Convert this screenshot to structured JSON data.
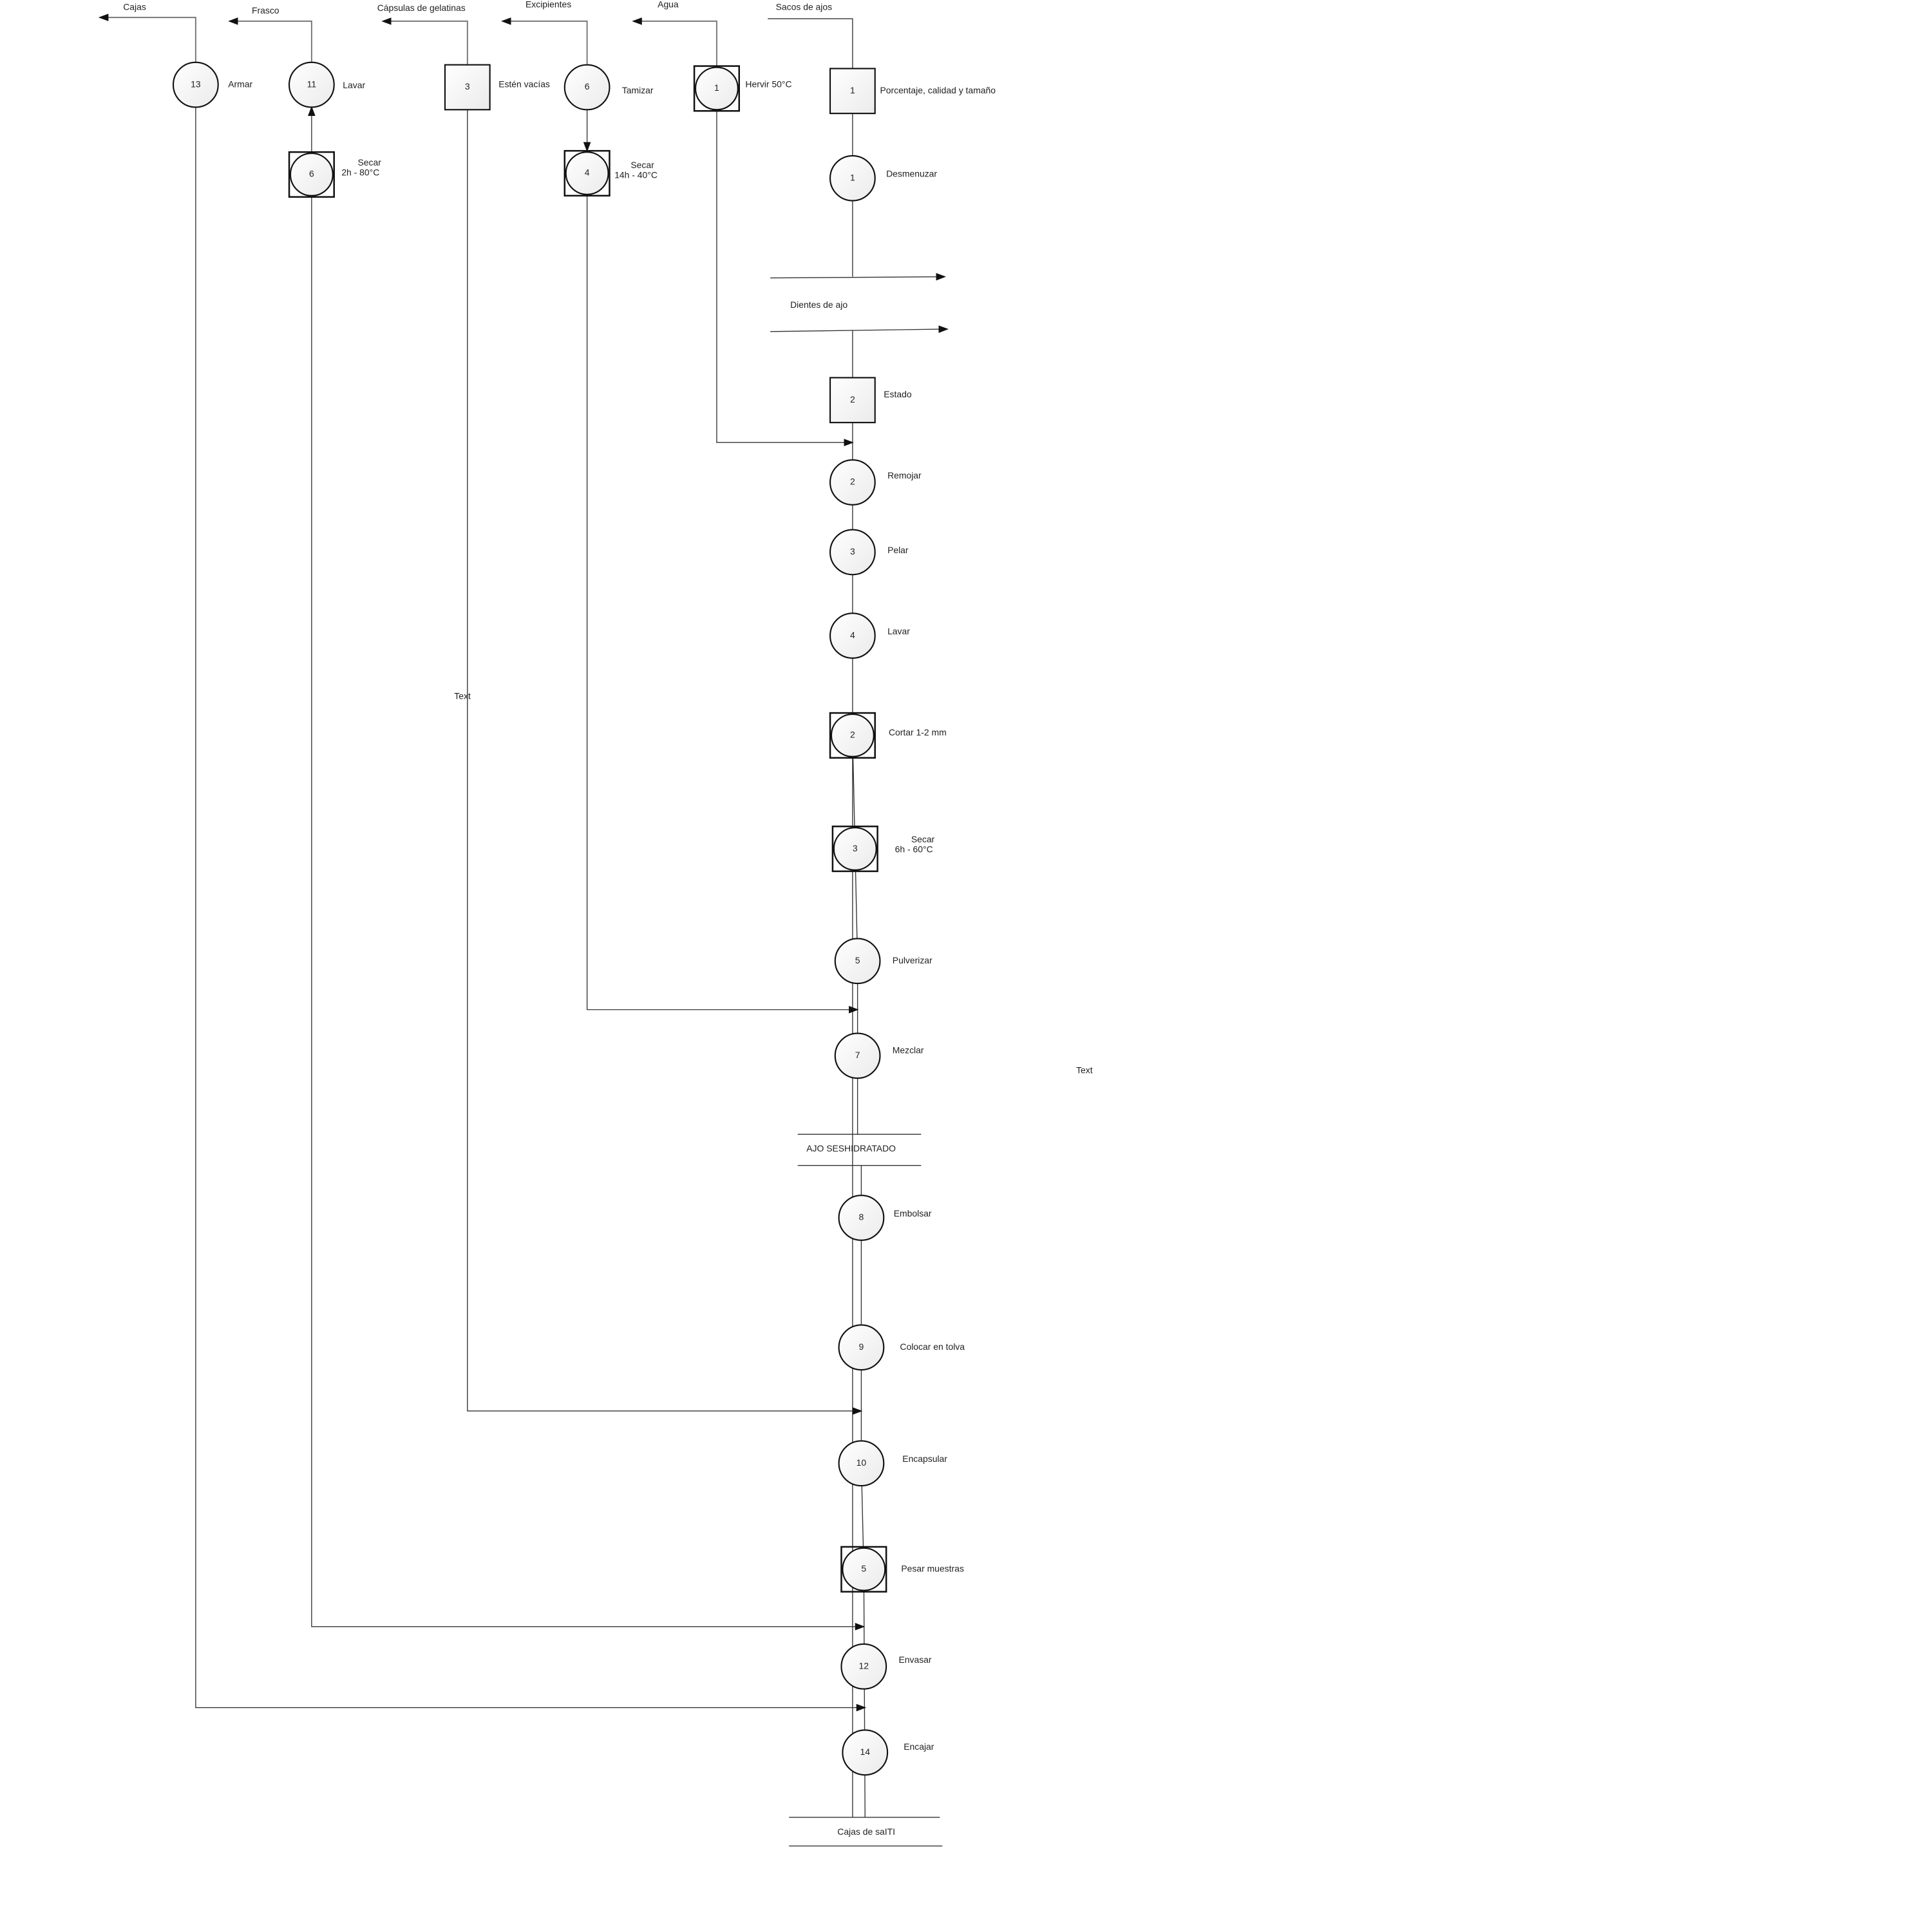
{
  "nodes": {
    "n_sq1": {
      "symbol": "inspection",
      "number": "1",
      "label": [
        "Porcentaje, calidad y tamaño"
      ]
    },
    "n_op1": {
      "symbol": "operation",
      "number": "1",
      "label": [
        "Desmenuzar"
      ]
    },
    "n_sq2": {
      "symbol": "inspection",
      "number": "2",
      "label": [
        "Estado"
      ]
    },
    "n_op2": {
      "symbol": "operation",
      "number": "2",
      "label": [
        "Remojar"
      ]
    },
    "n_op3": {
      "symbol": "operation",
      "number": "3",
      "label": [
        "Pelar"
      ]
    },
    "n_op4": {
      "symbol": "operation",
      "number": "4",
      "label": [
        "Lavar"
      ]
    },
    "n_c2": {
      "symbol": "combined",
      "number": "2",
      "label": [
        "Cortar 1-2 mm"
      ]
    },
    "n_c3": {
      "symbol": "combined",
      "number": "3",
      "label": [
        "Secar",
        "6h - 60°C"
      ]
    },
    "n_op5": {
      "symbol": "operation",
      "number": "5",
      "label": [
        "Pulverizar"
      ]
    },
    "n_op7": {
      "symbol": "operation",
      "number": "7",
      "label": [
        "Mezclar"
      ]
    },
    "n_op8": {
      "symbol": "operation",
      "number": "8",
      "label": [
        "Embolsar"
      ]
    },
    "n_op9": {
      "symbol": "operation",
      "number": "9",
      "label": [
        "Colocar en tolva"
      ]
    },
    "n_op10": {
      "symbol": "operation",
      "number": "10",
      "label": [
        "Encapsular"
      ]
    },
    "n_c5": {
      "symbol": "combined",
      "number": "5",
      "label": [
        "Pesar muestras"
      ]
    },
    "n_op12": {
      "symbol": "operation",
      "number": "12",
      "label": [
        "Envasar"
      ]
    },
    "n_op14": {
      "symbol": "operation",
      "number": "14",
      "label": [
        "Encajar"
      ]
    },
    "n_c1": {
      "symbol": "combined",
      "number": "1",
      "label": [
        "Hervir 50°C"
      ]
    },
    "n_op6": {
      "symbol": "operation",
      "number": "6",
      "label": [
        "Tamizar"
      ]
    },
    "n_c4": {
      "symbol": "combined",
      "number": "4",
      "label": [
        "Secar",
        "14h - 40°C"
      ]
    },
    "n_sq3": {
      "symbol": "inspection",
      "number": "3",
      "label": [
        "Estén vacías"
      ]
    },
    "n_op11": {
      "symbol": "operation",
      "number": "11",
      "label": [
        "Lavar"
      ]
    },
    "n_c6": {
      "symbol": "combined",
      "number": "6",
      "label": [
        "Secar",
        "2h - 80°C"
      ]
    },
    "n_op13": {
      "symbol": "operation",
      "number": "13",
      "label": [
        "Armar"
      ]
    }
  },
  "inputs": {
    "sacos": "Sacos de ajos",
    "agua": "Agua",
    "excipientes": "Excipientes",
    "capsulas": "Cápsulas de gelatinas",
    "frasco": "Frasco",
    "cajas": "Cajas"
  },
  "separators": {
    "dientes": "Dientes de ajo",
    "ajo": "AJO SESHIDRATADO",
    "final": "Cajas de saITI"
  },
  "free_text": [
    "Text",
    "Text"
  ],
  "colors": {
    "line": "#333333",
    "shape_fill_start": "#ffffff",
    "shape_fill_end": "#ececec"
  }
}
